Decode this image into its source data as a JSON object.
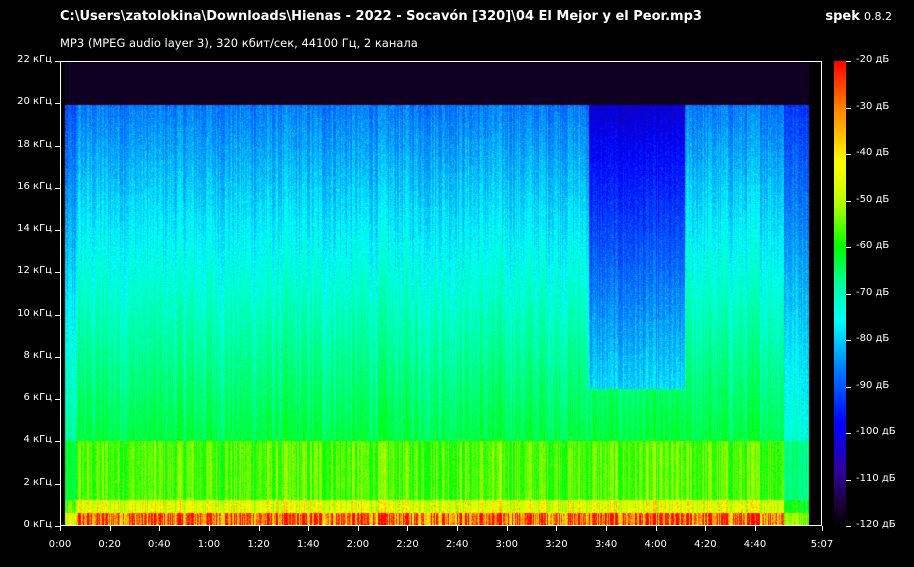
{
  "header": {
    "file_path": "C:\\Users\\zatolokina\\Downloads\\Hienas - 2022 - Socavón [320]\\04 El Mejor y el Peor.mp3",
    "audio_info": "MP3 (MPEG audio layer 3), 320 кбит/сек, 44100 Гц, 2 канала",
    "app_name": "spek",
    "app_version": "0.8.2"
  },
  "y_axis": {
    "labels": [
      "22 кГц",
      "20 кГц",
      "18 кГц",
      "16 кГц",
      "14 кГц",
      "12 кГц",
      "10 кГц",
      "8 кГц",
      "6 кГц",
      "4 кГц",
      "2 кГц",
      "0 кГц"
    ]
  },
  "x_axis": {
    "labels": [
      "0:00",
      "0:20",
      "0:40",
      "1:00",
      "1:20",
      "1:40",
      "2:00",
      "2:20",
      "2:40",
      "3:00",
      "3:20",
      "3:40",
      "4:00",
      "4:20",
      "4:40",
      "5:07"
    ]
  },
  "color_scale": {
    "labels": [
      "-20 дБ",
      "-30 дБ",
      "-40 дБ",
      "-50 дБ",
      "-60 дБ",
      "-70 дБ",
      "-80 дБ",
      "-90 дБ",
      "-100 дБ",
      "-110 дБ",
      "-120 дБ"
    ]
  },
  "spectrogram": {
    "duration_seconds": 307,
    "max_freq_khz": 22,
    "cutoff_khz": 20,
    "colors": {
      "low": "#000000",
      "mid": "#00ff00",
      "high": "#ff0000"
    }
  }
}
